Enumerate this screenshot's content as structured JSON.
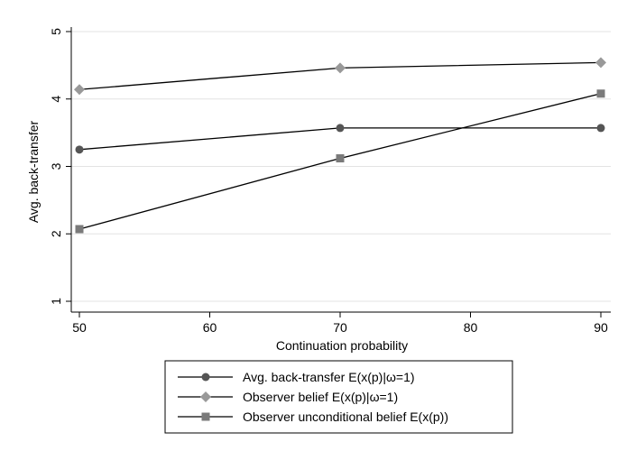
{
  "chart_data": {
    "type": "line",
    "xlabel": "Continuation probability",
    "ylabel": "Avg. back-transfer",
    "x": [
      50,
      70,
      90
    ],
    "xlim": [
      50,
      90
    ],
    "ylim": [
      1,
      5
    ],
    "x_ticks": [
      "50",
      "60",
      "70",
      "80",
      "90"
    ],
    "y_ticks": [
      "1",
      "2",
      "3",
      "4",
      "5"
    ],
    "grid": true,
    "legend_position": "bottom",
    "series": [
      {
        "name": "Avg. back-transfer E(x(p)|ω=1)",
        "values": [
          3.25,
          3.57,
          3.57
        ],
        "marker": "circle",
        "color": "#555555"
      },
      {
        "name": "Observer belief E(x(p)|ω=1)",
        "values": [
          4.14,
          4.46,
          4.54
        ],
        "marker": "diamond",
        "color": "#999999"
      },
      {
        "name": "Observer unconditional belief E(x(p))",
        "values": [
          2.07,
          3.12,
          4.08
        ],
        "marker": "square",
        "color": "#7a7a7a"
      }
    ]
  }
}
